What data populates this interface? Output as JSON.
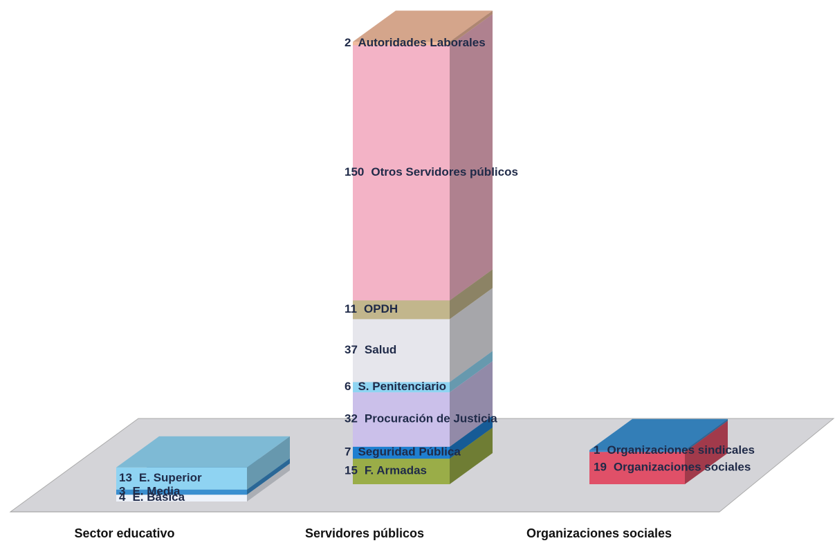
{
  "chart_data": {
    "type": "stacked_bar_3d",
    "categories": [
      "Sector educativo",
      "Servidores públicos",
      "Organizaciones sociales"
    ],
    "series": [
      {
        "name": "E. Básica",
        "color": "#eef2fa",
        "values": [
          4,
          null,
          null
        ]
      },
      {
        "name": "E. Media",
        "color": "#3a8fd0",
        "values": [
          3,
          null,
          null
        ]
      },
      {
        "name": "E. Superior",
        "color": "#8fd3f2",
        "values": [
          13,
          null,
          null
        ]
      },
      {
        "name": "F. Armadas",
        "color": "#9aad48",
        "values": [
          null,
          15,
          null
        ]
      },
      {
        "name": "Seguridad Pública",
        "color": "#1f7fd0",
        "values": [
          null,
          7,
          null
        ]
      },
      {
        "name": "Procuración de Justicia",
        "color": "#cbc0ea",
        "values": [
          null,
          32,
          null
        ]
      },
      {
        "name": "S. Penitenciario",
        "color": "#8fd4f2",
        "values": [
          null,
          6,
          null
        ]
      },
      {
        "name": "Salud",
        "color": "#e6e6ec",
        "values": [
          null,
          37,
          null
        ]
      },
      {
        "name": "OPDH",
        "color": "#c2b68c",
        "values": [
          null,
          11,
          null
        ]
      },
      {
        "name": "Otros Servidores públicos",
        "color": "#f3b3c6",
        "values": [
          null,
          150,
          null
        ]
      },
      {
        "name": "Autoridades Laborales",
        "color": "#f1bb9e",
        "values": [
          null,
          2,
          null
        ]
      },
      {
        "name": "Organizaciones sociales",
        "color": "#e05068",
        "values": [
          null,
          null,
          19
        ]
      },
      {
        "name": "Organizaciones sindicales",
        "color": "#3a8fd0",
        "values": [
          null,
          null,
          1
        ]
      }
    ]
  }
}
